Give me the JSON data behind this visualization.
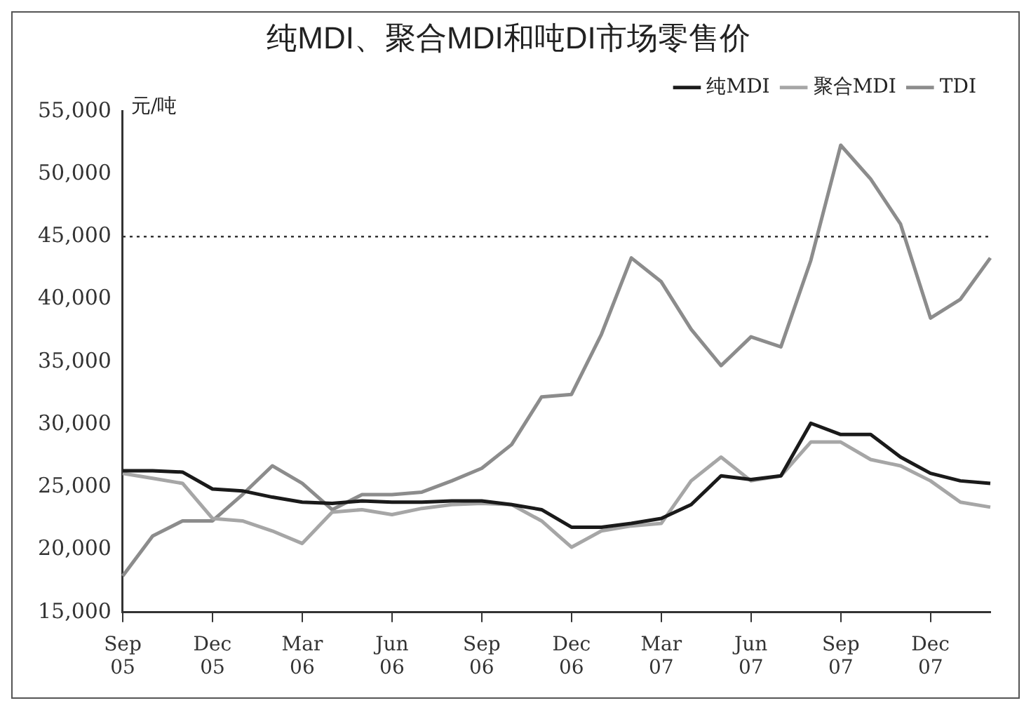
{
  "chart_data": {
    "type": "line",
    "title": "纯MDI、聚合MDI和吨DI市场零售价",
    "ylabel": "元/吨",
    "categories": [
      "Sep 05",
      null,
      null,
      "Dec 05",
      null,
      null,
      "Mar 06",
      null,
      null,
      "Jun 06",
      null,
      null,
      "Sep 06",
      null,
      null,
      "Dec 06",
      null,
      null,
      "Mar 07",
      null,
      null,
      "Jun 07",
      null,
      null,
      "Sep 07",
      null,
      null,
      "Dec 07",
      null,
      null
    ],
    "series": [
      {
        "name": "纯MDI",
        "color": "#1a1a1a",
        "values": [
          26300,
          26300,
          26200,
          24850,
          24700,
          24200,
          23800,
          23700,
          23900,
          23800,
          23800,
          23900,
          23900,
          23600,
          23200,
          21800,
          21800,
          22100,
          22500,
          23600,
          25900,
          25600,
          25900,
          30100,
          29200,
          29200,
          27400,
          26100,
          25500,
          25300
        ]
      },
      {
        "name": "聚合MDI",
        "color": "#a6a6a6",
        "values": [
          26100,
          25700,
          25300,
          22500,
          22300,
          21500,
          20500,
          23000,
          23200,
          22800,
          23300,
          23600,
          23700,
          23600,
          22300,
          20200,
          21500,
          21900,
          22100,
          25500,
          27400,
          25500,
          25900,
          28600,
          28600,
          27200,
          26700,
          25500,
          23800,
          23400
        ]
      },
      {
        "name": "TDI",
        "color": "#8c8c8c",
        "values": [
          17900,
          21100,
          22300,
          22300,
          24400,
          26700,
          25300,
          23200,
          24400,
          24400,
          24600,
          25500,
          26500,
          28400,
          32200,
          32400,
          37200,
          43300,
          41400,
          37600,
          34700,
          37000,
          36200,
          43100,
          52300,
          49600,
          46000,
          38500,
          40000,
          43300
        ]
      }
    ],
    "ylim": [
      15000,
      55000
    ],
    "yticks": [
      {
        "value": 15000,
        "label": "15,000"
      },
      {
        "value": 20000,
        "label": "20,000"
      },
      {
        "value": 25000,
        "label": "25,000"
      },
      {
        "value": 30000,
        "label": "30,000"
      },
      {
        "value": 35000,
        "label": "35,000"
      },
      {
        "value": 40000,
        "label": "40,000"
      },
      {
        "value": 45000,
        "label": "45,000"
      },
      {
        "value": 50000,
        "label": "50,000"
      },
      {
        "value": 55000,
        "label": "55,000"
      }
    ],
    "ref_lines": [
      {
        "axis": "y",
        "value": 45000,
        "color": "#333333",
        "line_style": "dotted"
      }
    ],
    "grid": false,
    "legend": "top",
    "marker": "none",
    "line_style": "solid"
  }
}
